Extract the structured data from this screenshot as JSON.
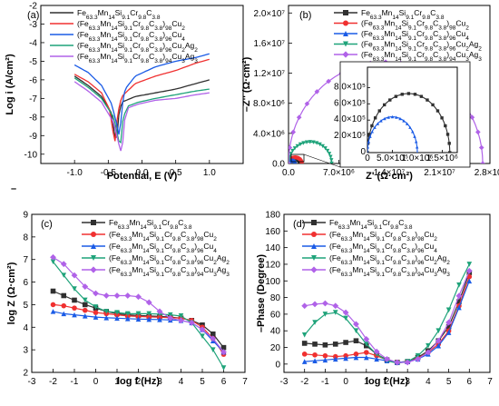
{
  "chart_data": [
    {
      "id": "a",
      "type": "line",
      "panel_label": "(a)",
      "xlabel": "Potential, E (V)",
      "ylabel": "Log i (A/cm²)",
      "xlim": [
        -1.5,
        1.5
      ],
      "ylim": [
        -10.5,
        -2
      ],
      "xticks": [
        "-1.0",
        "-0.5",
        "0.0",
        "0.5",
        "1.0"
      ],
      "xtick_values": [
        -1.0,
        -0.5,
        0.0,
        0.5,
        1.0
      ],
      "yticks": [
        "-2",
        "-3",
        "-4",
        "-5",
        "-6",
        "-7",
        "-8",
        "-9",
        "-10"
      ],
      "ytick_values": [
        -2,
        -3,
        -4,
        -5,
        -6,
        -7,
        -8,
        -9,
        -10
      ],
      "extra_text": "–",
      "legend_position": "top-left",
      "series": [
        {
          "name": "Fe63.3Mn14Si9.1Cr9.8C3.8",
          "color": "#303030",
          "x": [
            -1.0,
            -0.8,
            -0.6,
            -0.45,
            -0.4,
            -0.38,
            -0.35,
            -0.3,
            -0.1,
            0.2,
            0.5,
            0.8,
            1.0
          ],
          "y": [
            -5.8,
            -6.3,
            -6.9,
            -7.8,
            -9.1,
            -9.5,
            -8.0,
            -7.2,
            -6.9,
            -6.7,
            -6.5,
            -6.2,
            -6.0
          ]
        },
        {
          "name": "(Fe63.3Mn14Si9.1Cr9.8C3.8)98Cu2",
          "color": "#f03030",
          "x": [
            -1.0,
            -0.8,
            -0.6,
            -0.48,
            -0.42,
            -0.4,
            -0.36,
            -0.3,
            -0.1,
            0.2,
            0.5,
            0.8,
            1.0
          ],
          "y": [
            -5.7,
            -6.1,
            -6.7,
            -7.6,
            -9.0,
            -9.3,
            -7.8,
            -6.9,
            -6.2,
            -5.8,
            -5.5,
            -5.1,
            -4.9
          ]
        },
        {
          "name": "(Fe63.3Mn14Si9.1Cr9.8C3.8)96Cu4",
          "color": "#1a5be6",
          "x": [
            -1.0,
            -0.8,
            -0.6,
            -0.45,
            -0.36,
            -0.33,
            -0.3,
            -0.25,
            -0.1,
            0.2,
            0.5,
            0.8,
            1.0
          ],
          "y": [
            -5.2,
            -5.6,
            -6.3,
            -7.3,
            -8.6,
            -9.2,
            -7.5,
            -6.5,
            -5.8,
            -5.3,
            -5.0,
            -4.8,
            -4.6
          ]
        },
        {
          "name": "(Fe63.3Mn14Si9.1Cr9.8C3.8)96Cu2Ag2",
          "color": "#1fa37a",
          "x": [
            -1.0,
            -0.8,
            -0.6,
            -0.42,
            -0.35,
            -0.32,
            -0.28,
            -0.2,
            -0.05,
            0.2,
            0.5,
            0.8,
            1.0
          ],
          "y": [
            -5.9,
            -6.4,
            -7.0,
            -8.0,
            -9.2,
            -9.6,
            -8.0,
            -7.4,
            -7.2,
            -7.0,
            -6.8,
            -6.6,
            -6.5
          ]
        },
        {
          "name": "(Fe63.3Mn14Si9.1Cr9.8C3.8)94Cu3Ag3",
          "color": "#b062e8",
          "x": [
            -1.0,
            -0.8,
            -0.6,
            -0.42,
            -0.34,
            -0.3,
            -0.26,
            -0.2,
            -0.05,
            0.2,
            0.5,
            0.8,
            1.0
          ],
          "y": [
            -6.1,
            -6.6,
            -7.2,
            -8.3,
            -9.5,
            -10.0,
            -8.2,
            -7.5,
            -7.3,
            -7.1,
            -7.0,
            -6.8,
            -6.7
          ]
        }
      ]
    },
    {
      "id": "b",
      "type": "scatter",
      "panel_label": "(b)",
      "xlabel": "Z' (Ω·cm²)",
      "ylabel": "–Z'' (Ω·cm²)",
      "xlim": [
        0,
        28000000.0
      ],
      "ylim": [
        0,
        21000000.0
      ],
      "xticks": [
        "0.0",
        "7.0×10⁶",
        "1.4×10⁷",
        "2.1×10⁷",
        "2.8×10⁷"
      ],
      "xtick_values": [
        0,
        7000000.0,
        14000000.0,
        21000000.0,
        28000000.0
      ],
      "yticks": [
        "0.0",
        "4.0×10⁶",
        "8.0×10⁶",
        "1.2×10⁷",
        "1.6×10⁷",
        "2.0×10⁷"
      ],
      "ytick_values": [
        0,
        4000000.0,
        8000000.0,
        12000000.0,
        16000000.0,
        20000000.0
      ],
      "legend_position": "top-right",
      "series": [
        {
          "name": "Fe63.3Mn14Si9.1Cr9.8C3.8",
          "color": "#303030",
          "marker": "square",
          "semicircle": {
            "r0": 0,
            "diameter": 1650000.0,
            "height_ratio": 0.88
          }
        },
        {
          "name": "(Fe63.3Mn14Si9.1Cr9.8C3.8)98Cu2",
          "color": "#f03030",
          "marker": "circle",
          "semicircle": {
            "r0": 0,
            "diameter": 1850000.0,
            "height_ratio": 0.88
          }
        },
        {
          "name": "(Fe63.3Mn14Si9.1Cr9.8C3.8)96Cu4",
          "color": "#1a5be6",
          "marker": "triangle-up",
          "semicircle": {
            "r0": 0,
            "diameter": 1000000.0,
            "height_ratio": 0.88
          }
        },
        {
          "name": "(Fe63.3Mn14Si9.1Cr9.8C3.8)96Cu2Ag2",
          "color": "#1fa37a",
          "marker": "triangle-down",
          "semicircle": {
            "r0": 0,
            "diameter": 6000000.0,
            "height_ratio": 0.95
          }
        },
        {
          "name": "(Fe63.3Mn14Si9.1Cr9.8C3.8)94Cu3Ag3",
          "color": "#b062e8",
          "marker": "diamond",
          "semicircle": {
            "r0": 0,
            "diameter": 27000000.0,
            "height_ratio": 1.0
          }
        }
      ],
      "inset": {
        "xlim": [
          0,
          1800000.0
        ],
        "ylim": [
          0,
          1050000.0
        ],
        "xticks": [
          "0",
          "5.0×10⁵",
          "1.0×10⁶",
          "1.5×10⁶"
        ],
        "xtick_values": [
          0,
          500000.0,
          1000000.0,
          1500000.0
        ],
        "yticks": [
          "0",
          "2.0×10⁵",
          "4.0×10⁵",
          "6.0×10⁵",
          "8.0×10⁵"
        ],
        "ytick_values": [
          0,
          200000.0,
          400000.0,
          600000.0,
          800000.0
        ]
      }
    },
    {
      "id": "c",
      "type": "line",
      "panel_label": "(c)",
      "xlabel": "log f (Hz)",
      "ylabel": "log Z (Ω·cm²)",
      "xlim": [
        -3,
        7
      ],
      "ylim": [
        2,
        9
      ],
      "xticks": [
        "-3",
        "-2",
        "-1",
        "0",
        "1",
        "2",
        "3",
        "4",
        "5",
        "6",
        "7"
      ],
      "xtick_values": [
        -3,
        -2,
        -1,
        0,
        1,
        2,
        3,
        4,
        5,
        6,
        7
      ],
      "yticks": [
        "2",
        "3",
        "4",
        "5",
        "6",
        "7",
        "8",
        "9"
      ],
      "ytick_values": [
        2,
        3,
        4,
        5,
        6,
        7,
        8,
        9
      ],
      "legend_position": "top-right",
      "series": [
        {
          "name": "Fe63.3Mn14Si9.1Cr9.8C3.8",
          "color": "#303030",
          "marker": "square",
          "x": [
            -2,
            -1.5,
            -1,
            -0.5,
            0,
            0.5,
            1,
            1.5,
            2,
            2.5,
            3,
            3.5,
            4,
            4.5,
            5,
            5.5,
            6
          ],
          "y": [
            5.6,
            5.4,
            5.2,
            5.0,
            4.85,
            4.7,
            4.6,
            4.55,
            4.52,
            4.5,
            4.48,
            4.45,
            4.4,
            4.3,
            4.1,
            3.7,
            3.1
          ]
        },
        {
          "name": "(Fe63.3Mn14Si9.1Cr9.8C3.8)98Cu2",
          "color": "#f03030",
          "marker": "circle",
          "x": [
            -2,
            -1.5,
            -1,
            -0.5,
            0,
            0.5,
            1,
            1.5,
            2,
            2.5,
            3,
            3.5,
            4,
            4.5,
            5,
            5.5,
            6
          ],
          "y": [
            5.0,
            4.95,
            4.85,
            4.75,
            4.65,
            4.6,
            4.55,
            4.5,
            4.48,
            4.46,
            4.44,
            4.42,
            4.4,
            4.3,
            4.0,
            3.5,
            2.8
          ]
        },
        {
          "name": "(Fe63.3Mn14Si9.1Cr9.8C3.8)96Cu4",
          "color": "#1a5be6",
          "marker": "triangle-up",
          "x": [
            -2,
            -1.5,
            -1,
            -0.5,
            0,
            0.5,
            1,
            1.5,
            2,
            2.5,
            3,
            3.5,
            4,
            4.5,
            5,
            5.5,
            6
          ],
          "y": [
            4.7,
            4.6,
            4.55,
            4.5,
            4.45,
            4.42,
            4.4,
            4.38,
            4.36,
            4.35,
            4.34,
            4.32,
            4.3,
            4.2,
            3.9,
            3.4,
            2.9
          ]
        },
        {
          "name": "(Fe63.3Mn14Si9.1Cr9.8C3.8)96Cu2Ag2",
          "color": "#1fa37a",
          "marker": "triangle-down",
          "x": [
            -2,
            -1.5,
            -1,
            -0.5,
            0,
            0.5,
            1,
            1.5,
            2,
            2.5,
            3,
            3.5,
            4,
            4.5,
            5,
            5.5,
            6
          ],
          "y": [
            6.9,
            6.3,
            5.7,
            5.2,
            4.9,
            4.7,
            4.65,
            4.6,
            4.6,
            4.6,
            4.58,
            4.55,
            4.5,
            4.2,
            3.6,
            3.0,
            2.2
          ]
        },
        {
          "name": "(Fe63.3Mn14Si9.1Cr9.8C3.8)94Cu3Ag3",
          "color": "#b062e8",
          "marker": "diamond",
          "x": [
            -2,
            -1.5,
            -1,
            -0.5,
            0,
            0.5,
            1,
            1.5,
            2,
            2.5,
            3,
            3.5,
            4,
            4.5,
            5,
            5.5,
            6
          ],
          "y": [
            7.1,
            6.8,
            6.3,
            5.8,
            5.5,
            5.4,
            5.4,
            5.4,
            5.35,
            5.1,
            4.7,
            4.4,
            4.3,
            4.2,
            3.9,
            3.5,
            2.9
          ]
        }
      ]
    },
    {
      "id": "d",
      "type": "line",
      "panel_label": "(d)",
      "xlabel": "log f (Hz)",
      "ylabel": "–Phase (Degree)",
      "xlim": [
        -3,
        7
      ],
      "ylim": [
        -10,
        180
      ],
      "xticks": [
        "-3",
        "-2",
        "-1",
        "0",
        "1",
        "2",
        "3",
        "4",
        "5",
        "6",
        "7"
      ],
      "xtick_values": [
        -3,
        -2,
        -1,
        0,
        1,
        2,
        3,
        4,
        5,
        6,
        7
      ],
      "yticks": [
        "0",
        "20",
        "40",
        "60",
        "80",
        "100",
        "120",
        "140",
        "160",
        "180"
      ],
      "ytick_values": [
        0,
        20,
        40,
        60,
        80,
        100,
        120,
        140,
        160,
        180
      ],
      "legend_position": "top-right",
      "series": [
        {
          "name": "Fe63.3Mn14Si9.1Cr9.8C3.8",
          "color": "#303030",
          "marker": "square",
          "x": [
            -2,
            -1.5,
            -1,
            -0.5,
            0,
            0.5,
            1,
            1.5,
            2,
            2.5,
            3,
            3.5,
            4,
            4.5,
            5,
            5.5,
            6
          ],
          "y": [
            25,
            24,
            23,
            24,
            26,
            28,
            22,
            12,
            5,
            2,
            3,
            8,
            16,
            28,
            45,
            75,
            110
          ]
        },
        {
          "name": "(Fe63.3Mn14Si9.1Cr9.8C3.8)98Cu2",
          "color": "#f03030",
          "marker": "circle",
          "x": [
            -2,
            -1.5,
            -1,
            -0.5,
            0,
            0.5,
            1,
            1.5,
            2,
            2.5,
            3,
            3.5,
            4,
            4.5,
            5,
            5.5,
            6
          ],
          "y": [
            12,
            11,
            10,
            9,
            10,
            12,
            14,
            10,
            5,
            2,
            3,
            7,
            14,
            24,
            40,
            70,
            105
          ]
        },
        {
          "name": "(Fe63.3Mn14Si9.1Cr9.8C3.8)96Cu4",
          "color": "#1a5be6",
          "marker": "triangle-up",
          "x": [
            -2,
            -1.5,
            -1,
            -0.5,
            0,
            0.5,
            1,
            1.5,
            2,
            2.5,
            3,
            3.5,
            4,
            4.5,
            5,
            5.5,
            6
          ],
          "y": [
            3,
            4,
            5,
            6,
            7,
            8,
            8,
            6,
            4,
            2,
            3,
            6,
            12,
            22,
            38,
            68,
            100
          ]
        },
        {
          "name": "(Fe63.3Mn14Si9.1Cr9.8C3.8)96Cu2Ag2",
          "color": "#1fa37a",
          "marker": "triangle-down",
          "x": [
            -2,
            -1.5,
            -1,
            -0.5,
            0,
            0.5,
            1,
            1.5,
            2,
            2.5,
            3,
            3.5,
            4,
            4.5,
            5,
            5.5,
            6
          ],
          "y": [
            35,
            50,
            60,
            62,
            55,
            40,
            24,
            12,
            4,
            1,
            3,
            10,
            22,
            40,
            65,
            95,
            120
          ]
        },
        {
          "name": "(Fe63.3Mn14Si9.1Cr9.8C3.8)94Cu3Ag3",
          "color": "#b062e8",
          "marker": "diamond",
          "x": [
            -2,
            -1.5,
            -1,
            -0.5,
            0,
            0.5,
            1,
            1.5,
            2,
            2.5,
            3,
            3.5,
            4,
            4.5,
            5,
            5.5,
            6
          ],
          "y": [
            70,
            72,
            73,
            70,
            62,
            48,
            30,
            15,
            6,
            2,
            2,
            6,
            14,
            28,
            50,
            82,
            112
          ]
        }
      ]
    }
  ]
}
